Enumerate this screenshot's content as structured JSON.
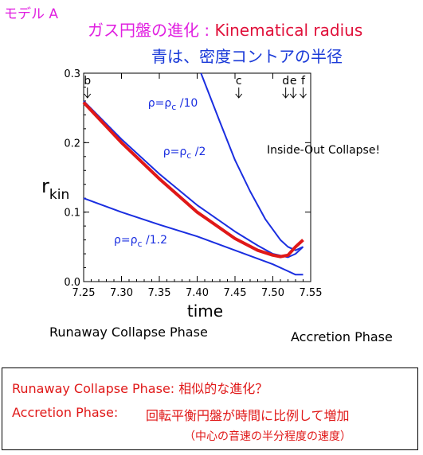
{
  "model_label": "モデル A",
  "heading": {
    "jp": "ガス円盤の進化 : ",
    "en": "Kinematical radius"
  },
  "subheading": "青は、密度コントアの半径",
  "phases": {
    "left": "Runaway Collapse Phase",
    "right": "Accretion Phase"
  },
  "notes": {
    "line1_label": "Runaway Collapse Phase: ",
    "line1_value": "相似的な進化？",
    "line2_label": "Accretion Phase: ",
    "line2_value": "回転平衡円盤が時間に比例して増加",
    "line3": "（中心の音速の半分程度の速度）"
  },
  "colors": {
    "density": "#1a2ee0",
    "kinematic": "#e01818",
    "heading": "#e020e0",
    "subheading": "#1a3ad8"
  },
  "chart_data": {
    "type": "line",
    "xlabel": "time",
    "ylabel": "r",
    "ylabel_sub": "kin",
    "xlim": [
      7.25,
      7.55
    ],
    "ylim": [
      0.0,
      0.3
    ],
    "xticks": [
      "7.25",
      "7.30",
      "7.35",
      "7.40",
      "7.45",
      "7.50",
      "7.55"
    ],
    "xtick_values": [
      7.25,
      7.3,
      7.35,
      7.4,
      7.45,
      7.5,
      7.55
    ],
    "yticks": [
      "0.0",
      "0.1",
      "0.2",
      "0.3"
    ],
    "ytick_values": [
      0.0,
      0.1,
      0.2,
      0.3
    ],
    "markers": [
      {
        "label": "b",
        "x": 7.255
      },
      {
        "label": "c",
        "x": 7.455
      },
      {
        "label": "d",
        "x": 7.517
      },
      {
        "label": "e",
        "x": 7.527
      },
      {
        "label": "f",
        "x": 7.54
      }
    ],
    "annotation": "Inside-Out Collapse!",
    "series": [
      {
        "name": "ρ=ρc /10",
        "label_main": "ρ=ρ",
        "label_sub": "c",
        "label_tail": " /10",
        "label_at": [
          7.335,
          0.252
        ],
        "color_key": "density",
        "x": [
          7.405,
          7.43,
          7.45,
          7.47,
          7.49,
          7.51,
          7.52,
          7.53,
          7.54
        ],
        "y": [
          0.3,
          0.23,
          0.175,
          0.13,
          0.09,
          0.06,
          0.05,
          0.045,
          0.05
        ]
      },
      {
        "name": "ρ=ρc /2",
        "label_main": "ρ=ρ",
        "label_sub": "c",
        "label_tail": " /2",
        "label_at": [
          7.355,
          0.182
        ],
        "color_key": "density",
        "x": [
          7.25,
          7.3,
          7.35,
          7.4,
          7.45,
          7.48,
          7.5,
          7.52,
          7.53,
          7.54
        ],
        "y": [
          0.26,
          0.205,
          0.155,
          0.11,
          0.072,
          0.052,
          0.04,
          0.035,
          0.04,
          0.05
        ]
      },
      {
        "name": "ρ=ρc /1.2",
        "label_main": "ρ=ρ",
        "label_sub": "c",
        "label_tail": " /1.2",
        "label_at": [
          7.29,
          0.055
        ],
        "color_key": "density",
        "x": [
          7.25,
          7.3,
          7.35,
          7.4,
          7.45,
          7.5,
          7.52,
          7.53,
          7.535,
          7.54
        ],
        "y": [
          0.12,
          0.1,
          0.082,
          0.065,
          0.045,
          0.025,
          0.015,
          0.01,
          0.01,
          0.01
        ]
      },
      {
        "name": "rkin",
        "color_key": "kinematic",
        "x": [
          7.25,
          7.3,
          7.35,
          7.4,
          7.45,
          7.48,
          7.5,
          7.51,
          7.52,
          7.53,
          7.54
        ],
        "y": [
          0.258,
          0.2,
          0.148,
          0.1,
          0.062,
          0.045,
          0.038,
          0.036,
          0.038,
          0.05,
          0.06
        ]
      }
    ]
  }
}
